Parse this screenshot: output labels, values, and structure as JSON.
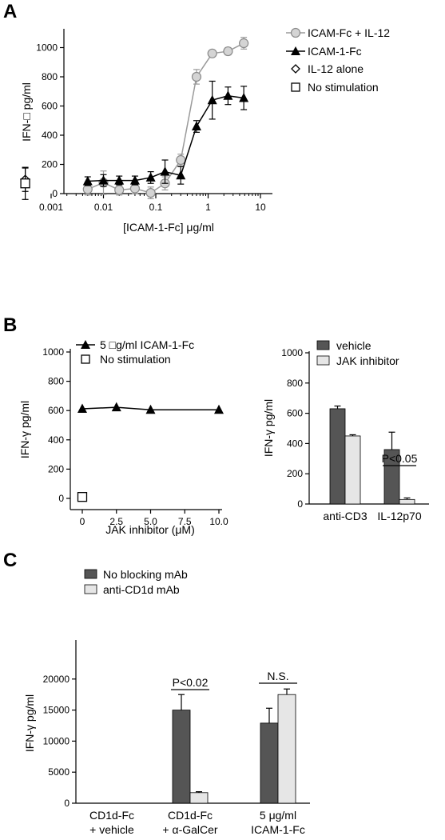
{
  "panels": {
    "A": {
      "letter": "A"
    },
    "B": {
      "letter": "B"
    },
    "C": {
      "letter": "C"
    }
  },
  "chart_data": [
    {
      "id": "A",
      "type": "line",
      "xscale": "log",
      "xlabel": "[ICAM-1-Fc] μg/ml",
      "ylabel": "IFN-□ pg/ml",
      "xlim": [
        0.0003,
        10
      ],
      "ylim": [
        0,
        1100
      ],
      "xticks": [
        0.001,
        0.01,
        0.1,
        1,
        10
      ],
      "xtick_labels": [
        "0.001",
        "0.01",
        "0.1",
        "1",
        "10"
      ],
      "yticks": [
        0,
        200,
        400,
        600,
        800,
        1000
      ],
      "ytick_labels": [
        "0",
        "200",
        "400",
        "600",
        "800",
        "1000"
      ],
      "legend_position": "top-right",
      "series": [
        {
          "name": "ICAM-Fc + IL-12",
          "marker": "circle",
          "color": "#9a9a9a",
          "x": [
            0.005,
            0.01,
            0.02,
            0.04,
            0.08,
            0.15,
            0.3,
            0.6,
            1.2,
            2.4,
            4.8
          ],
          "y": [
            30,
            75,
            25,
            35,
            5,
            70,
            230,
            800,
            960,
            975,
            1030
          ],
          "err": [
            40,
            80,
            35,
            35,
            40,
            45,
            40,
            50,
            20,
            25,
            40
          ]
        },
        {
          "name": "ICAM-1-Fc",
          "marker": "triangle",
          "color": "#000000",
          "x": [
            0.005,
            0.01,
            0.02,
            0.04,
            0.08,
            0.15,
            0.3,
            0.6,
            1.2,
            2.4,
            4.8
          ],
          "y": [
            85,
            90,
            90,
            90,
            110,
            150,
            125,
            460,
            640,
            670,
            655
          ],
          "err": [
            30,
            40,
            30,
            30,
            40,
            80,
            60,
            40,
            130,
            60,
            80
          ]
        },
        {
          "name": "IL-12 alone",
          "marker": "diamond",
          "color": "#000000",
          "x": [
            0.00032
          ],
          "y": [
            95
          ],
          "err": [
            80
          ]
        },
        {
          "name": "No stimulation",
          "marker": "square",
          "color": "#000000",
          "x": [
            0.00032
          ],
          "y": [
            70
          ],
          "err": [
            110
          ]
        }
      ]
    },
    {
      "id": "B-left",
      "type": "line",
      "xlabel": "JAK inhibitor (μM)",
      "ylabel": "IFN-γ pg/ml",
      "xlim": [
        0,
        10
      ],
      "ylim": [
        0,
        1000
      ],
      "xticks": [
        0,
        2.5,
        5,
        7.5,
        10
      ],
      "xtick_labels": [
        "0",
        "2.5",
        "5.0",
        "7.5",
        "10.0"
      ],
      "yticks": [
        0,
        200,
        400,
        600,
        800,
        1000
      ],
      "ytick_labels": [
        "0",
        "200",
        "400",
        "600",
        "800",
        "1000"
      ],
      "legend_position": "top-left",
      "series": [
        {
          "name": "5 □g/ml ICAM-1-Fc",
          "marker": "triangle",
          "x": [
            0,
            2.5,
            5,
            10
          ],
          "y": [
            612,
            622,
            605,
            605
          ]
        },
        {
          "name": "No stimulation",
          "marker": "square",
          "x": [
            0
          ],
          "y": [
            10
          ]
        }
      ]
    },
    {
      "id": "B-right",
      "type": "bar",
      "categories": [
        "anti-CD3",
        "IL-12p70"
      ],
      "ylabel": "IFN-γ pg/ml",
      "ylim": [
        0,
        1000
      ],
      "yticks": [
        0,
        200,
        400,
        600,
        800,
        1000
      ],
      "ytick_labels": [
        "0",
        "200",
        "400",
        "600",
        "800",
        "1000"
      ],
      "legend_position": "top-right",
      "series": [
        {
          "name": "vehicle",
          "color": "#555555",
          "values": [
            630,
            360
          ],
          "err": [
            18,
            115
          ]
        },
        {
          "name": "JAK inhibitor",
          "color": "#e6e6e6",
          "values": [
            450,
            30
          ],
          "err": [
            8,
            10
          ]
        }
      ],
      "annotations": [
        {
          "text": "P<0.05",
          "category": 1
        }
      ]
    },
    {
      "id": "C",
      "type": "bar",
      "categories": [
        {
          "line1": "CD1d-Fc",
          "line2": "+ vehicle"
        },
        {
          "line1": "CD1d-Fc",
          "line2": "+ α-GalCer"
        },
        {
          "line1": "5 μg/ml",
          "line2": "ICAM-1-Fc"
        }
      ],
      "ylabel": "IFN-γ pg/ml",
      "ylim": [
        0,
        25000
      ],
      "yticks": [
        0,
        5000,
        10000,
        15000,
        20000
      ],
      "ytick_labels": [
        "0",
        "5000",
        "10000",
        "15000",
        "20000"
      ],
      "legend_position": "top-left",
      "series": [
        {
          "name": "No blocking mAb",
          "color": "#555555",
          "values": [
            0,
            15000,
            12900
          ],
          "err": [
            0,
            2500,
            2400
          ]
        },
        {
          "name": "anti-CD1d mAb",
          "color": "#e6e6e6",
          "values": [
            0,
            1700,
            17500
          ],
          "err": [
            0,
            150,
            900
          ]
        }
      ],
      "annotations": [
        {
          "text": "P<0.02",
          "category": 1
        },
        {
          "text": "N.S.",
          "category": 2
        }
      ]
    }
  ]
}
